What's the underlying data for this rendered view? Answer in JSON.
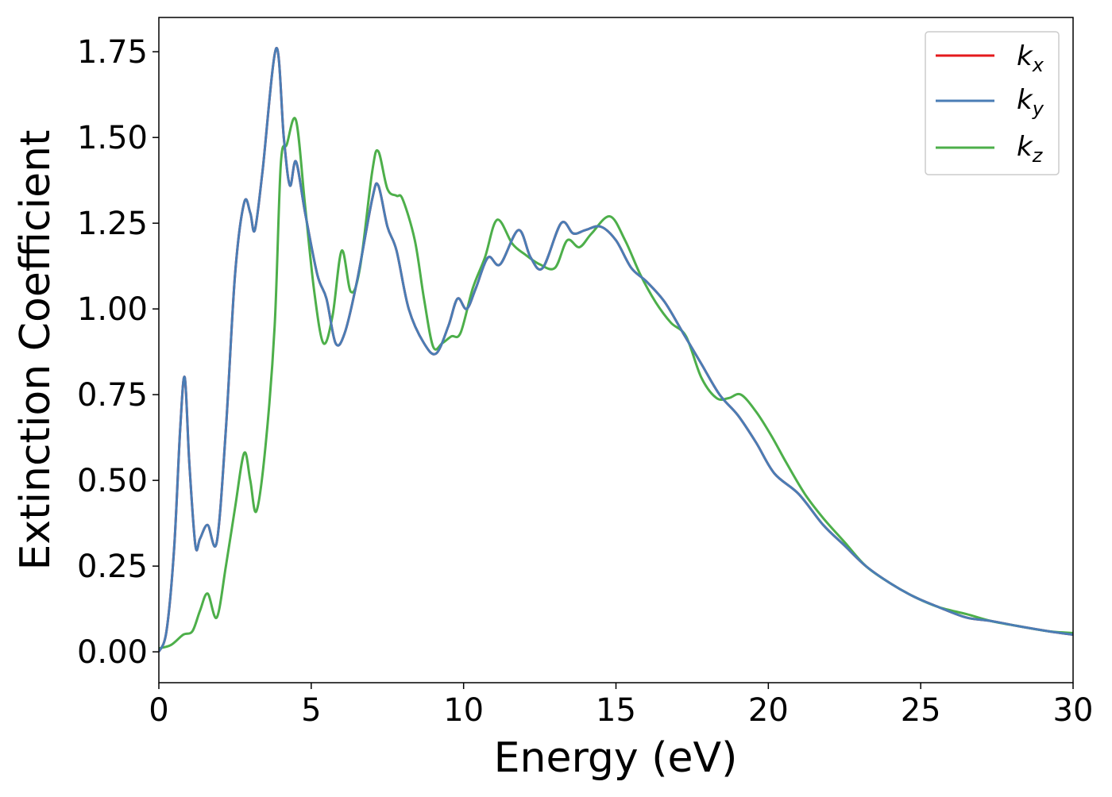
{
  "chart_data": {
    "type": "line",
    "title": "",
    "xlabel": "Energy (eV)",
    "ylabel": "Extinction Coefficient",
    "xlim": [
      0,
      30
    ],
    "ylim": [
      -0.09,
      1.85
    ],
    "xticks": [
      0,
      5,
      10,
      15,
      20,
      25,
      30
    ],
    "xtick_labels": [
      "0",
      "5",
      "10",
      "15",
      "20",
      "25",
      "30"
    ],
    "yticks": [
      0,
      0.25,
      0.5,
      0.75,
      1.0,
      1.25,
      1.5,
      1.75
    ],
    "ytick_labels": [
      "0.00",
      "0.25",
      "0.50",
      "0.75",
      "1.00",
      "1.25",
      "1.50",
      "1.75"
    ],
    "grid": false,
    "legend_position": "top-right",
    "series": [
      {
        "name": "k_x",
        "label_main": "k",
        "label_sub": "x",
        "color": "#e41a1c",
        "x": [
          0.0,
          0.25,
          0.5,
          0.7,
          0.85,
          1.0,
          1.2,
          1.35,
          1.6,
          1.9,
          2.2,
          2.5,
          2.8,
          3.0,
          3.15,
          3.4,
          3.85,
          4.1,
          4.3,
          4.5,
          4.8,
          5.2,
          5.5,
          5.8,
          6.1,
          6.5,
          7.0,
          7.2,
          7.5,
          7.8,
          8.2,
          8.7,
          9.1,
          9.5,
          9.8,
          10.1,
          10.4,
          10.8,
          11.2,
          11.8,
          12.2,
          12.6,
          13.2,
          13.6,
          14.0,
          14.5,
          15.0,
          15.5,
          16.0,
          16.6,
          17.2,
          17.8,
          18.4,
          19.0,
          19.6,
          20.2,
          21.0,
          21.8,
          22.5,
          23.2,
          24.0,
          24.8,
          25.6,
          26.5,
          27.3,
          28.2,
          29.2,
          30.0
        ],
        "y": [
          0.0,
          0.06,
          0.3,
          0.65,
          0.8,
          0.55,
          0.31,
          0.33,
          0.37,
          0.32,
          0.65,
          1.1,
          1.31,
          1.28,
          1.23,
          1.4,
          1.76,
          1.5,
          1.36,
          1.43,
          1.28,
          1.1,
          1.03,
          0.9,
          0.93,
          1.08,
          1.32,
          1.36,
          1.24,
          1.17,
          1.0,
          0.9,
          0.87,
          0.95,
          1.03,
          1.0,
          1.06,
          1.15,
          1.13,
          1.23,
          1.15,
          1.12,
          1.25,
          1.22,
          1.23,
          1.24,
          1.2,
          1.12,
          1.08,
          1.02,
          0.93,
          0.84,
          0.75,
          0.69,
          0.61,
          0.52,
          0.46,
          0.37,
          0.31,
          0.25,
          0.2,
          0.16,
          0.13,
          0.1,
          0.09,
          0.075,
          0.06,
          0.05
        ]
      },
      {
        "name": "k_y",
        "label_main": "k",
        "label_sub": "y",
        "color": "#4a7db5",
        "x": [
          0.0,
          0.25,
          0.5,
          0.7,
          0.85,
          1.0,
          1.2,
          1.35,
          1.6,
          1.9,
          2.2,
          2.5,
          2.8,
          3.0,
          3.15,
          3.4,
          3.85,
          4.1,
          4.3,
          4.5,
          4.8,
          5.2,
          5.5,
          5.8,
          6.1,
          6.5,
          7.0,
          7.2,
          7.5,
          7.8,
          8.2,
          8.7,
          9.1,
          9.5,
          9.8,
          10.1,
          10.4,
          10.8,
          11.2,
          11.8,
          12.2,
          12.6,
          13.2,
          13.6,
          14.0,
          14.5,
          15.0,
          15.5,
          16.0,
          16.6,
          17.2,
          17.8,
          18.4,
          19.0,
          19.6,
          20.2,
          21.0,
          21.8,
          22.5,
          23.2,
          24.0,
          24.8,
          25.6,
          26.5,
          27.3,
          28.2,
          29.2,
          30.0
        ],
        "y": [
          0.0,
          0.06,
          0.3,
          0.65,
          0.8,
          0.55,
          0.31,
          0.33,
          0.37,
          0.32,
          0.65,
          1.1,
          1.31,
          1.28,
          1.23,
          1.4,
          1.76,
          1.5,
          1.36,
          1.43,
          1.28,
          1.1,
          1.03,
          0.9,
          0.93,
          1.08,
          1.32,
          1.36,
          1.24,
          1.17,
          1.0,
          0.9,
          0.87,
          0.95,
          1.03,
          1.0,
          1.06,
          1.15,
          1.13,
          1.23,
          1.15,
          1.12,
          1.25,
          1.22,
          1.23,
          1.24,
          1.2,
          1.12,
          1.08,
          1.02,
          0.93,
          0.84,
          0.75,
          0.69,
          0.61,
          0.52,
          0.46,
          0.37,
          0.31,
          0.25,
          0.2,
          0.16,
          0.13,
          0.1,
          0.09,
          0.075,
          0.06,
          0.05
        ]
      },
      {
        "name": "k_z",
        "label_main": "k",
        "label_sub": "z",
        "color": "#4daf4a",
        "x": [
          0.0,
          0.4,
          0.8,
          1.1,
          1.35,
          1.6,
          1.9,
          2.2,
          2.5,
          2.8,
          3.0,
          3.2,
          3.5,
          3.8,
          4.0,
          4.2,
          4.5,
          4.8,
          5.1,
          5.4,
          5.7,
          6.0,
          6.3,
          6.6,
          7.0,
          7.2,
          7.5,
          7.8,
          8.0,
          8.4,
          8.7,
          9.0,
          9.3,
          9.6,
          9.9,
          10.3,
          10.7,
          11.1,
          11.6,
          12.0,
          12.5,
          13.0,
          13.4,
          13.8,
          14.2,
          14.8,
          15.3,
          15.8,
          16.3,
          16.8,
          17.3,
          17.8,
          18.3,
          18.7,
          19.1,
          19.6,
          20.1,
          20.6,
          21.2,
          21.8,
          22.5,
          23.2,
          24.0,
          24.8,
          25.6,
          26.5,
          27.3,
          28.2,
          29.2,
          30.0
        ],
        "y": [
          0.01,
          0.02,
          0.05,
          0.06,
          0.12,
          0.17,
          0.1,
          0.25,
          0.42,
          0.58,
          0.5,
          0.41,
          0.6,
          0.95,
          1.42,
          1.48,
          1.55,
          1.3,
          1.05,
          0.9,
          0.98,
          1.17,
          1.05,
          1.12,
          1.4,
          1.46,
          1.35,
          1.33,
          1.32,
          1.2,
          1.03,
          0.89,
          0.9,
          0.92,
          0.93,
          1.06,
          1.15,
          1.26,
          1.19,
          1.16,
          1.13,
          1.12,
          1.2,
          1.18,
          1.22,
          1.27,
          1.2,
          1.1,
          1.02,
          0.96,
          0.92,
          0.8,
          0.74,
          0.74,
          0.75,
          0.7,
          0.63,
          0.55,
          0.46,
          0.39,
          0.32,
          0.25,
          0.2,
          0.16,
          0.13,
          0.11,
          0.09,
          0.075,
          0.06,
          0.055
        ]
      }
    ]
  }
}
